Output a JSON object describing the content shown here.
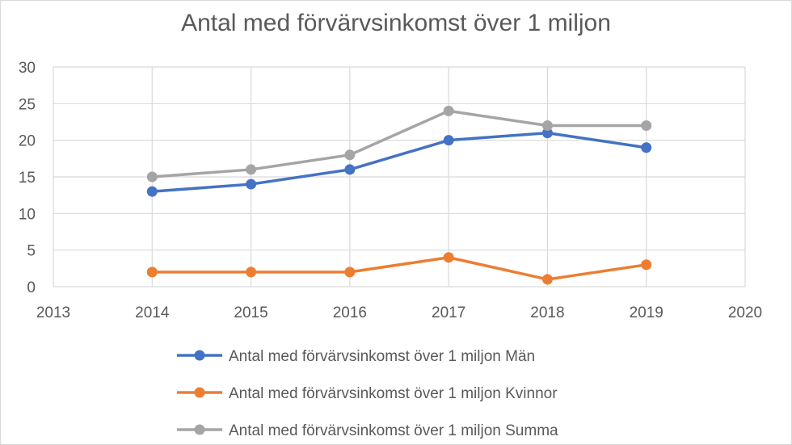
{
  "chart_data": {
    "type": "line",
    "title": "Antal med förvärvsinkomst över 1 miljon",
    "xlabel": "",
    "ylabel": "",
    "xlim": [
      2013,
      2020
    ],
    "ylim": [
      0,
      30
    ],
    "x_ticks": [
      2013,
      2014,
      2015,
      2016,
      2017,
      2018,
      2019,
      2020
    ],
    "y_ticks": [
      0,
      5,
      10,
      15,
      20,
      25,
      30
    ],
    "grid": true,
    "legend_position": "bottom",
    "x": [
      2014,
      2015,
      2016,
      2017,
      2018,
      2019
    ],
    "series": [
      {
        "name": "Antal med förvärvsinkomst över 1 miljon Män",
        "color": "#4472c4",
        "values": [
          13,
          14,
          16,
          20,
          21,
          19
        ]
      },
      {
        "name": "Antal med förvärvsinkomst över 1 miljon Kvinnor",
        "color": "#ed7d31",
        "values": [
          2,
          2,
          2,
          4,
          1,
          3
        ]
      },
      {
        "name": "Antal med förvärvsinkomst över 1 miljon Summa",
        "color": "#a5a5a5",
        "values": [
          15,
          16,
          18,
          24,
          22,
          22
        ]
      }
    ]
  }
}
